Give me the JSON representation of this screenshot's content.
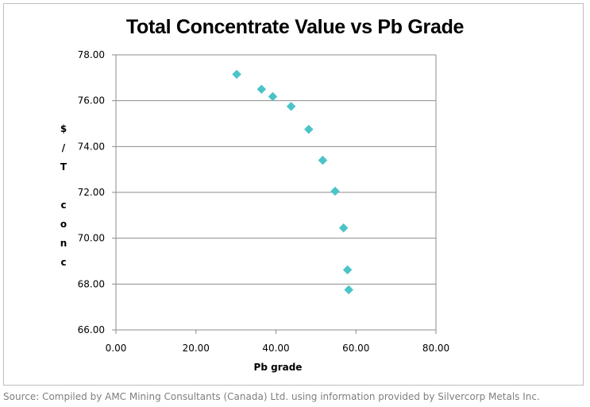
{
  "chart_data": {
    "type": "scatter",
    "title": "Total Concentrate Value vs Pb Grade",
    "xlabel": "Pb grade",
    "ylabel_chars": [
      "$",
      "/",
      "T",
      "",
      "c",
      "o",
      "n",
      "c"
    ],
    "xlim": [
      0,
      80
    ],
    "ylim": [
      66,
      78
    ],
    "x_ticks": [
      "0.00",
      "20.00",
      "40.00",
      "60.00",
      "80.00"
    ],
    "y_ticks": [
      "66.00",
      "68.00",
      "70.00",
      "72.00",
      "74.00",
      "76.00",
      "78.00"
    ],
    "grid": "horizontal",
    "legend": "none",
    "marker": "diamond",
    "series": [
      {
        "color": "#4bc4c8",
        "x": [
          30.2,
          36.4,
          39.2,
          43.8,
          48.2,
          51.7,
          54.8,
          56.9,
          57.9,
          58.2
        ],
        "y": [
          77.15,
          76.5,
          76.18,
          75.75,
          74.75,
          73.4,
          72.05,
          70.45,
          68.62,
          67.75
        ]
      }
    ]
  },
  "source": "Source: Compiled by AMC Mining Consultants (Canada) Ltd. using information provided by Silvercorp Metals Inc."
}
